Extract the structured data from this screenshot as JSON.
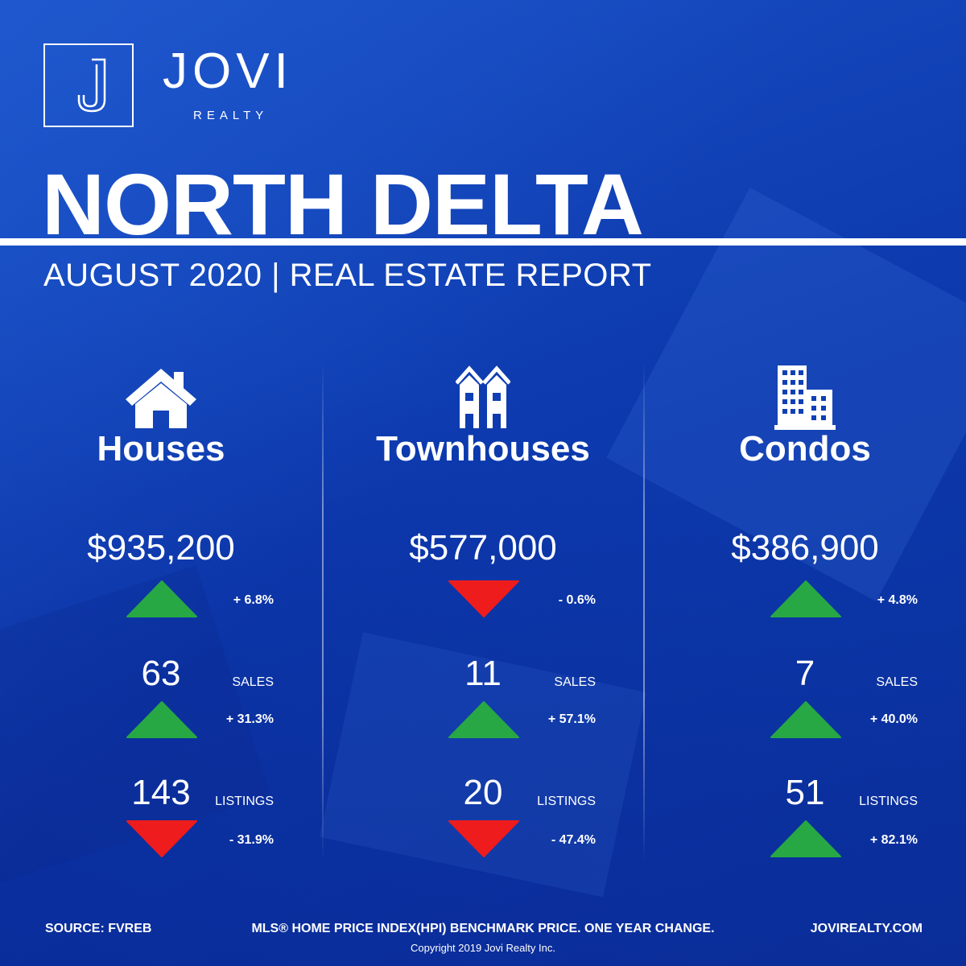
{
  "brand": {
    "name": "JOVI",
    "sub": "REALTY",
    "logo_letter": "J"
  },
  "title": "NORTH DELTA",
  "subtitle": "AUGUST 2020 | REAL ESTATE REPORT",
  "colors": {
    "background": "#0e3fb4",
    "up": "#27a844",
    "down": "#ee1c1c",
    "text": "#ffffff"
  },
  "labels": {
    "sales": "SALES",
    "listings": "LISTINGS"
  },
  "columns": [
    {
      "icon": "house-icon",
      "category": "Houses",
      "price": "$935,200",
      "price_change": "+ 6.8%",
      "price_dir": "up",
      "sales": "63",
      "sales_change": "+ 31.3%",
      "sales_dir": "up",
      "listings": "143",
      "listings_change": "- 31.9%",
      "listings_dir": "down"
    },
    {
      "icon": "townhouse-icon",
      "category": "Townhouses",
      "price": "$577,000",
      "price_change": "- 0.6%",
      "price_dir": "down",
      "sales": "11",
      "sales_change": "+ 57.1%",
      "sales_dir": "up",
      "listings": "20",
      "listings_change": "- 47.4%",
      "listings_dir": "down"
    },
    {
      "icon": "condo-building-icon",
      "category": "Condos",
      "price": "$386,900",
      "price_change": "+ 4.8%",
      "price_dir": "up",
      "sales": "7",
      "sales_change": "+ 40.0%",
      "sales_dir": "up",
      "listings": "51",
      "listings_change": "+ 82.1%",
      "listings_dir": "up"
    }
  ],
  "footer": {
    "source": "SOURCE:  FVREB",
    "note": "MLS® HOME PRICE INDEX(HPI) BENCHMARK PRICE. ONE YEAR CHANGE.",
    "website": "JOVIREALTY.COM",
    "copyright": "Copyright 2019 Jovi Realty Inc."
  }
}
